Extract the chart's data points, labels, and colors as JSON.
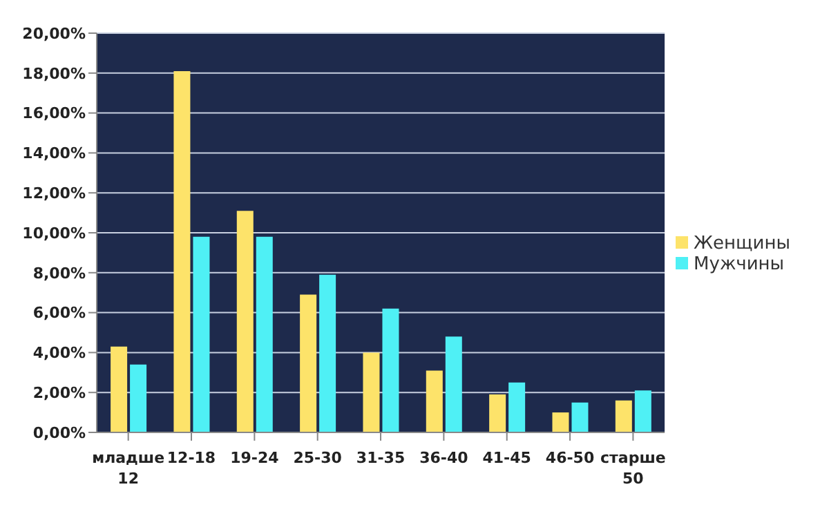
{
  "chart_data": {
    "type": "bar",
    "categories": [
      "младше 12",
      "12-18",
      "19-24",
      "25-30",
      "31-35",
      "36-40",
      "41-45",
      "46-50",
      "старше 50"
    ],
    "series": [
      {
        "name": "Женщины",
        "color": "#fde36a",
        "values": [
          4.3,
          18.1,
          11.1,
          6.9,
          4.0,
          3.1,
          1.9,
          1.0,
          1.6
        ]
      },
      {
        "name": "Мужчины",
        "color": "#4ff0f5",
        "values": [
          3.4,
          9.8,
          9.8,
          7.9,
          6.2,
          4.8,
          2.5,
          1.5,
          2.1
        ]
      }
    ],
    "ylim": [
      0,
      20
    ],
    "yticks": [
      {
        "value": 0,
        "label": "0,00%"
      },
      {
        "value": 2,
        "label": "2,00%"
      },
      {
        "value": 4,
        "label": "4,00%"
      },
      {
        "value": 6,
        "label": "6,00%"
      },
      {
        "value": 8,
        "label": "8,00%"
      },
      {
        "value": 10,
        "label": "10,00%"
      },
      {
        "value": 12,
        "label": "12,00%"
      },
      {
        "value": 14,
        "label": "14,00%"
      },
      {
        "value": 16,
        "label": "16,00%"
      },
      {
        "value": 18,
        "label": "18,00%"
      },
      {
        "value": 20,
        "label": "20,00%"
      }
    ],
    "grid": "y",
    "legend": "right"
  }
}
